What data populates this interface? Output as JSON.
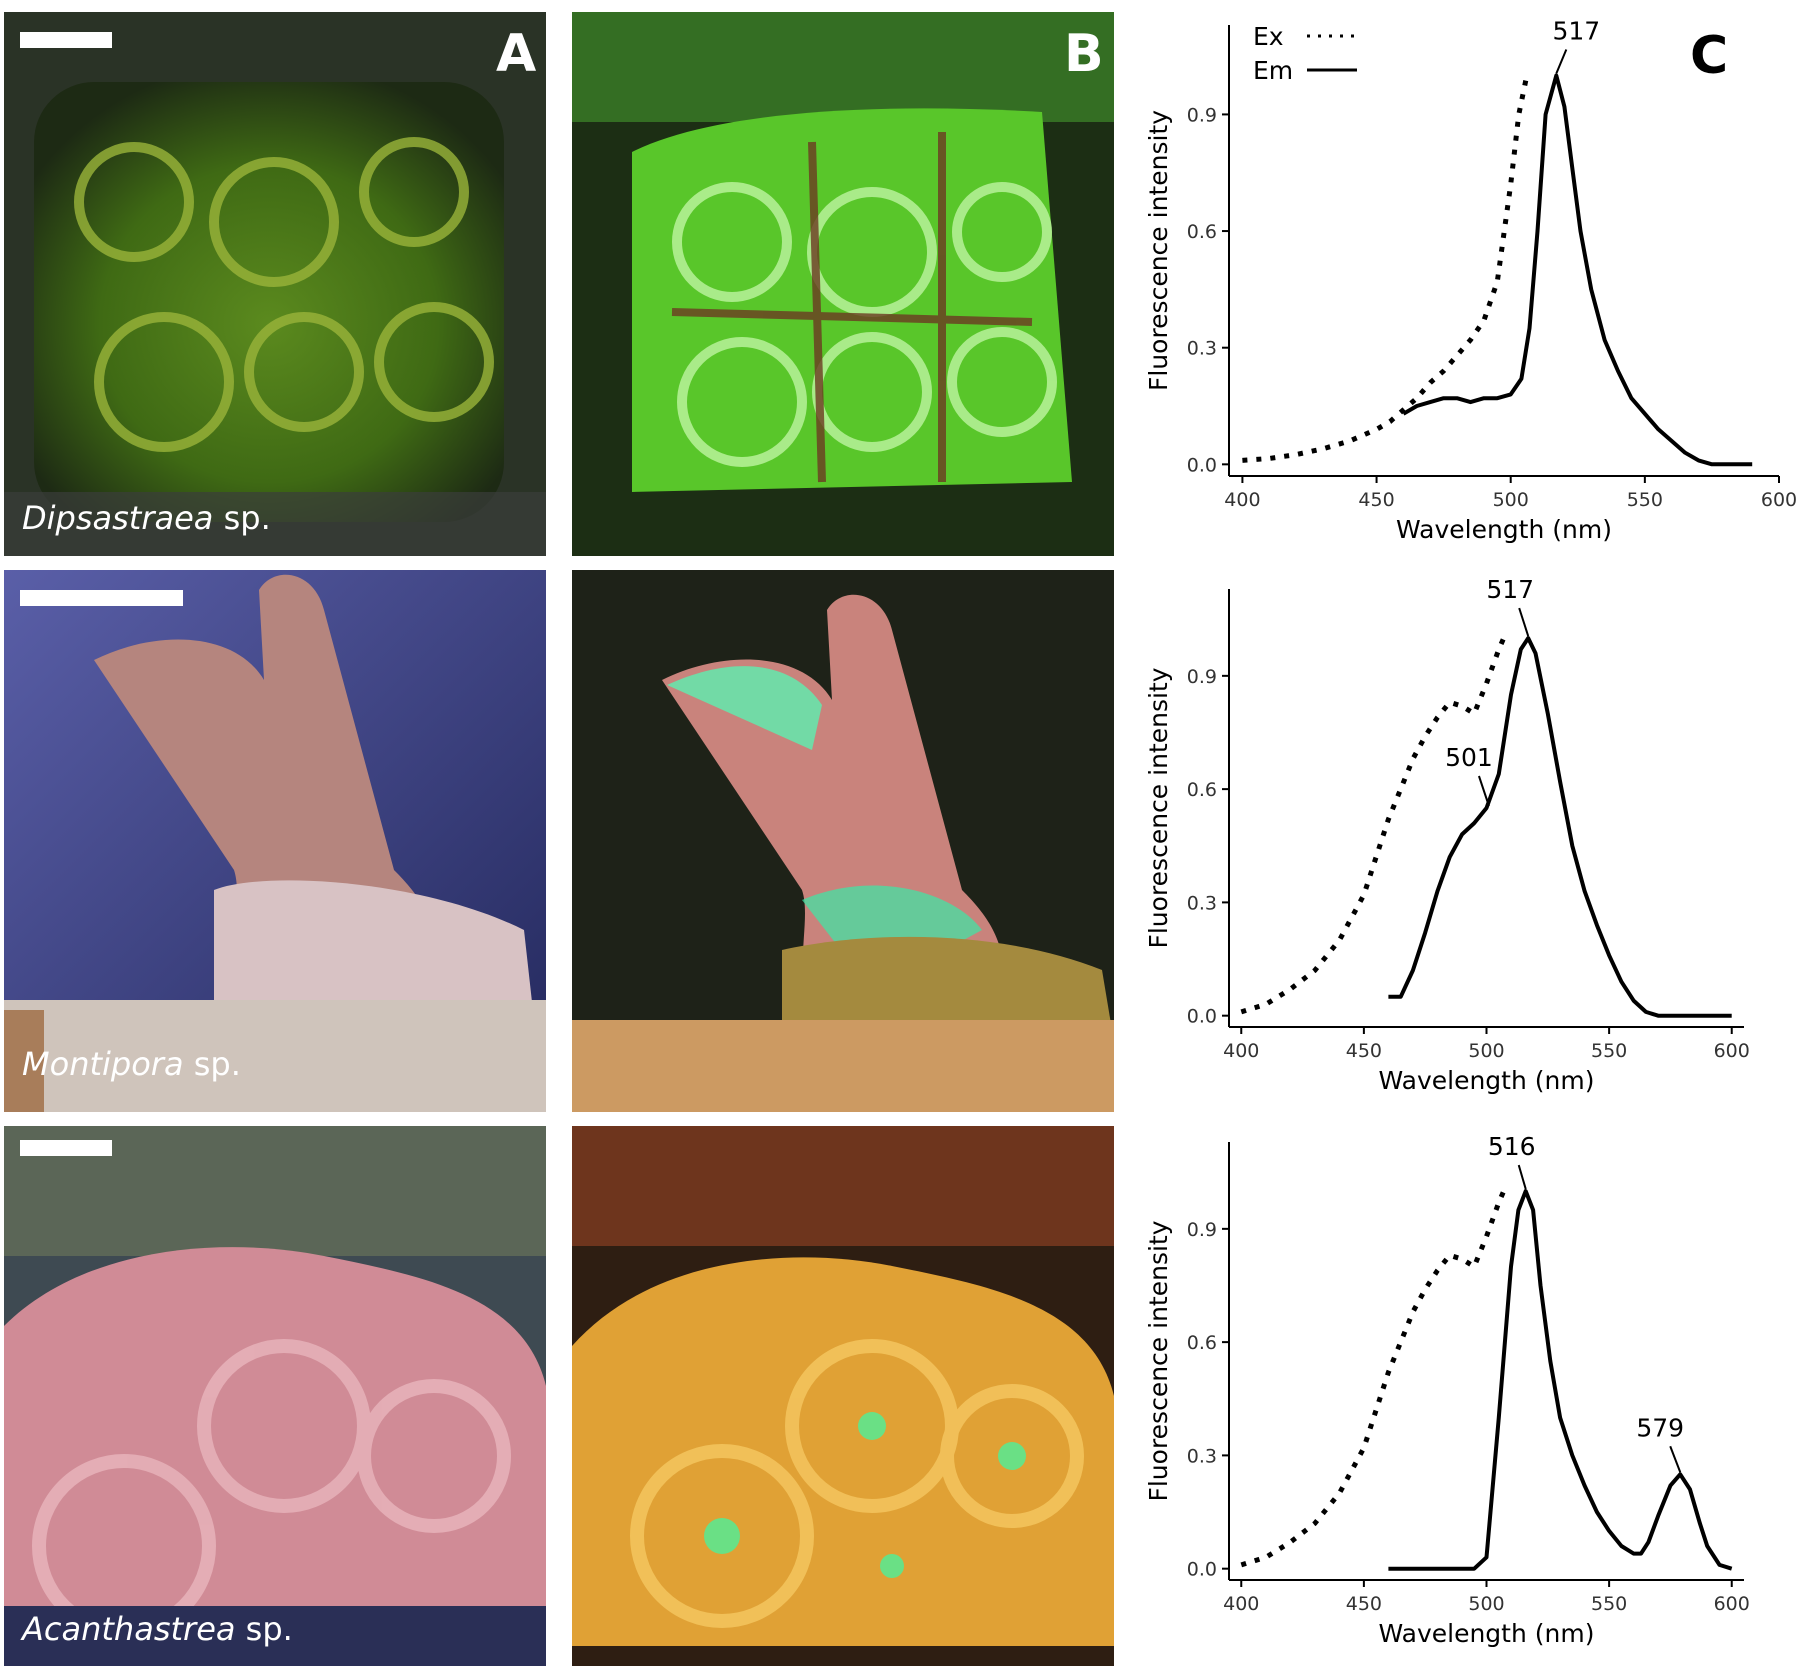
{
  "panel_labels": {
    "a": "A",
    "b": "B",
    "c": "C"
  },
  "species": [
    {
      "genus": "Dipsastraea",
      "suffix": " sp."
    },
    {
      "genus": "Montipora",
      "suffix": " sp."
    },
    {
      "genus": "Acanthastrea",
      "suffix": " sp."
    }
  ],
  "photo_descriptions": [
    {
      "white_light": "green-brown brain-like coral colonies",
      "fluorescence": "bright green fluorescent colonies"
    },
    {
      "white_light": "pinkish branching coral",
      "fluorescence": "pink polyps with green fluorescent tissue"
    },
    {
      "white_light": "pink ruffled colonies",
      "fluorescence": "orange fluorescent colonies with green centers"
    }
  ],
  "colors": {
    "curve": "#000000",
    "axis": "#000000"
  },
  "chart_data": [
    {
      "type": "line",
      "xlabel": "Wavelength (nm)",
      "ylabel": "Fluorescence intensity",
      "xlim": [
        395,
        600
      ],
      "ylim": [
        -0.03,
        1.13
      ],
      "xticks": [
        400,
        450,
        500,
        550,
        600
      ],
      "yticks": [
        0.0,
        0.3,
        0.6,
        0.9
      ],
      "legend": {
        "placement": "top-left",
        "entries": [
          "Ex",
          "Em"
        ]
      },
      "series": [
        {
          "name": "Ex",
          "style": "dotted",
          "x": [
            400,
            410,
            420,
            430,
            440,
            450,
            455,
            460,
            465,
            470,
            475,
            480,
            485,
            490,
            495,
            500,
            503,
            506
          ],
          "y": [
            0.01,
            0.015,
            0.025,
            0.04,
            0.06,
            0.09,
            0.11,
            0.14,
            0.17,
            0.21,
            0.24,
            0.28,
            0.32,
            0.37,
            0.47,
            0.72,
            0.9,
            1.0
          ]
        },
        {
          "name": "Em",
          "style": "solid",
          "x": [
            460,
            465,
            470,
            475,
            480,
            485,
            490,
            495,
            500,
            504,
            507,
            510,
            513,
            517,
            520,
            523,
            526,
            530,
            535,
            540,
            545,
            550,
            555,
            560,
            565,
            570,
            575,
            580,
            585,
            590
          ],
          "y": [
            0.13,
            0.15,
            0.16,
            0.17,
            0.17,
            0.16,
            0.17,
            0.17,
            0.18,
            0.22,
            0.35,
            0.6,
            0.9,
            1.0,
            0.92,
            0.76,
            0.6,
            0.45,
            0.32,
            0.24,
            0.17,
            0.13,
            0.09,
            0.06,
            0.03,
            0.01,
            0.0,
            0.0,
            0.0,
            0.0
          ]
        }
      ],
      "annotations": [
        {
          "text": "517",
          "x": 517,
          "y": 1.0
        }
      ]
    },
    {
      "type": "line",
      "xlabel": "Wavelength (nm)",
      "ylabel": "Fluorescence intensity",
      "xlim": [
        395,
        605
      ],
      "ylim": [
        -0.03,
        1.13
      ],
      "xticks": [
        400,
        450,
        500,
        550,
        600
      ],
      "yticks": [
        0.0,
        0.3,
        0.6,
        0.9
      ],
      "series": [
        {
          "name": "Ex",
          "style": "dotted",
          "x": [
            400,
            410,
            420,
            430,
            440,
            450,
            455,
            460,
            465,
            470,
            475,
            480,
            485,
            490,
            495,
            500,
            505,
            507
          ],
          "y": [
            0.01,
            0.03,
            0.07,
            0.12,
            0.2,
            0.32,
            0.42,
            0.52,
            0.6,
            0.68,
            0.74,
            0.79,
            0.83,
            0.82,
            0.8,
            0.88,
            0.97,
            1.0
          ]
        },
        {
          "name": "Em",
          "style": "solid",
          "x": [
            460,
            465,
            470,
            475,
            480,
            485,
            490,
            495,
            500,
            505,
            510,
            514,
            517,
            520,
            525,
            530,
            535,
            540,
            545,
            550,
            555,
            560,
            565,
            570,
            575,
            580,
            590,
            600
          ],
          "y": [
            0.05,
            0.05,
            0.12,
            0.22,
            0.33,
            0.42,
            0.48,
            0.51,
            0.55,
            0.64,
            0.85,
            0.97,
            1.0,
            0.96,
            0.8,
            0.62,
            0.45,
            0.33,
            0.24,
            0.16,
            0.09,
            0.04,
            0.01,
            0.0,
            0.0,
            0.0,
            0.0,
            0.0
          ]
        }
      ],
      "annotations": [
        {
          "text": "517",
          "x": 517,
          "y": 1.0
        },
        {
          "text": "501",
          "x": 501,
          "y": 0.55
        }
      ]
    },
    {
      "type": "line",
      "xlabel": "Wavelength (nm)",
      "ylabel": "Fluorescence intensity",
      "xlim": [
        395,
        605
      ],
      "ylim": [
        -0.03,
        1.13
      ],
      "xticks": [
        400,
        450,
        500,
        550,
        600
      ],
      "yticks": [
        0.0,
        0.3,
        0.6,
        0.9
      ],
      "series": [
        {
          "name": "Ex",
          "style": "dotted",
          "x": [
            400,
            410,
            420,
            430,
            440,
            450,
            455,
            460,
            465,
            470,
            475,
            480,
            485,
            490,
            495,
            500,
            505,
            507
          ],
          "y": [
            0.01,
            0.03,
            0.07,
            0.12,
            0.2,
            0.32,
            0.42,
            0.52,
            0.6,
            0.68,
            0.74,
            0.79,
            0.83,
            0.82,
            0.8,
            0.88,
            0.97,
            1.0
          ]
        },
        {
          "name": "Em",
          "style": "solid",
          "x": [
            460,
            470,
            480,
            490,
            495,
            500,
            505,
            510,
            513,
            516,
            519,
            522,
            526,
            530,
            535,
            540,
            545,
            550,
            555,
            560,
            563,
            566,
            570,
            575,
            579,
            583,
            587,
            590,
            595,
            600
          ],
          "y": [
            0.0,
            0.0,
            0.0,
            0.0,
            0.0,
            0.03,
            0.4,
            0.8,
            0.95,
            1.0,
            0.95,
            0.75,
            0.55,
            0.4,
            0.3,
            0.22,
            0.15,
            0.1,
            0.06,
            0.04,
            0.04,
            0.07,
            0.14,
            0.22,
            0.25,
            0.21,
            0.12,
            0.06,
            0.01,
            0.0
          ]
        }
      ],
      "annotations": [
        {
          "text": "516",
          "x": 516,
          "y": 1.0
        },
        {
          "text": "579",
          "x": 579,
          "y": 0.25
        }
      ]
    }
  ]
}
